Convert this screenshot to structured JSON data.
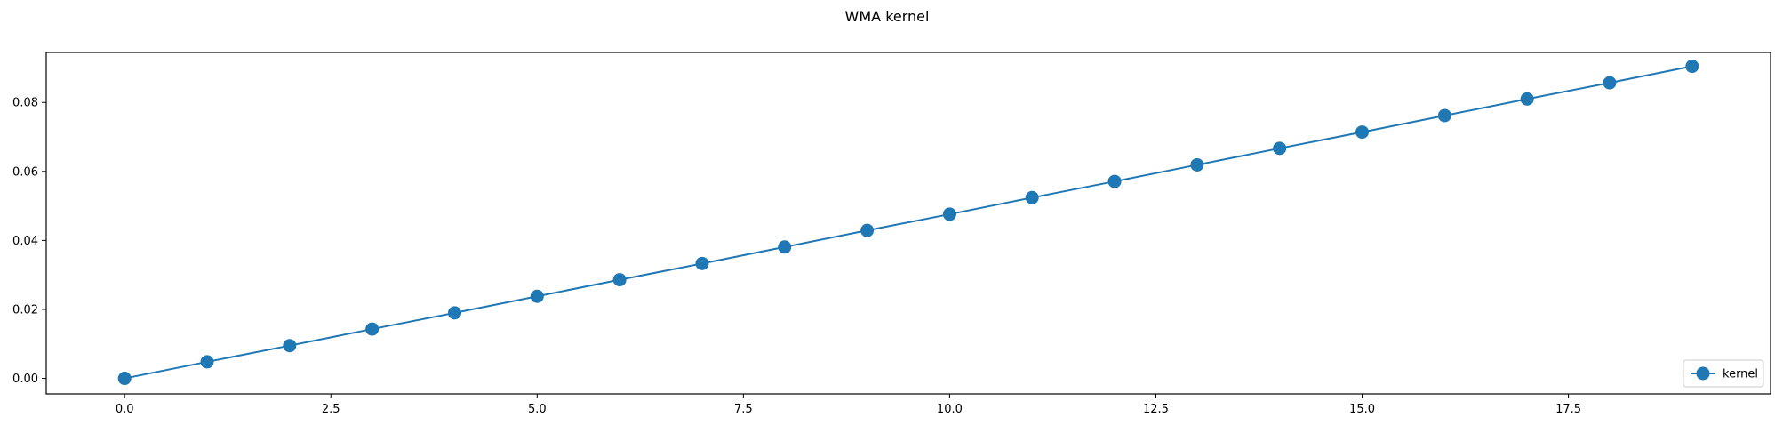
{
  "chart_data": {
    "type": "line",
    "title": "WMA kernel",
    "xlabel": "",
    "ylabel": "",
    "xlim": [
      -0.95,
      19.95
    ],
    "ylim": [
      -0.0045,
      0.0945
    ],
    "x_ticks": [
      0.0,
      2.5,
      5.0,
      7.5,
      10.0,
      12.5,
      15.0,
      17.5
    ],
    "x_tick_labels": [
      "0.0",
      "2.5",
      "5.0",
      "7.5",
      "10.0",
      "12.5",
      "15.0",
      "17.5"
    ],
    "y_ticks": [
      0.0,
      0.02,
      0.04,
      0.06,
      0.08
    ],
    "y_tick_labels": [
      "0.00",
      "0.02",
      "0.04",
      "0.06",
      "0.08"
    ],
    "grid": false,
    "legend_position": "bottom-right",
    "series": [
      {
        "name": "kernel",
        "color": "#1f77b4",
        "marker": "circle",
        "x": [
          0,
          1,
          2,
          3,
          4,
          5,
          6,
          7,
          8,
          9,
          10,
          11,
          12,
          13,
          14,
          15,
          16,
          17,
          18,
          19
        ],
        "values": [
          0.0,
          0.0048,
          0.0095,
          0.0143,
          0.019,
          0.0238,
          0.0286,
          0.0333,
          0.0381,
          0.0429,
          0.0476,
          0.0524,
          0.0571,
          0.0619,
          0.0667,
          0.0714,
          0.0762,
          0.081,
          0.0857,
          0.0905
        ]
      }
    ]
  }
}
